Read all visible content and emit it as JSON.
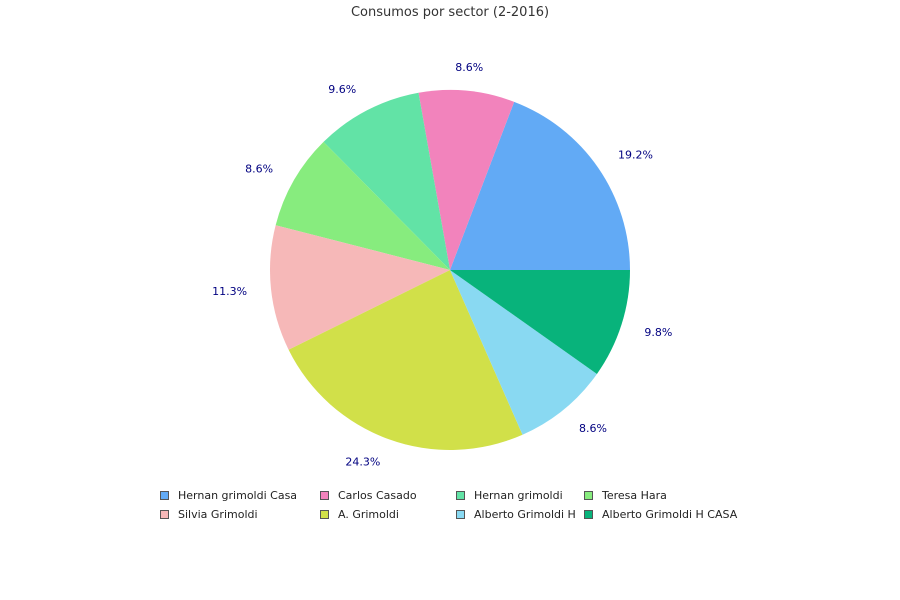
{
  "chart_data": {
    "type": "pie",
    "title": "Consumos por sector (2-2016)",
    "slices": [
      {
        "name": "Hernan grimoldi Casa",
        "value": 19.2,
        "label": "19.2%",
        "color": "#62AAF5"
      },
      {
        "name": "Carlos Casado",
        "value": 8.6,
        "label": "8.6%",
        "color": "#F283BC"
      },
      {
        "name": "Hernan grimoldi",
        "value": 9.6,
        "label": "9.6%",
        "color": "#62E3A6"
      },
      {
        "name": "Teresa Hara",
        "value": 8.6,
        "label": "8.6%",
        "color": "#87EC7E"
      },
      {
        "name": "Silvia Grimoldi",
        "value": 11.3,
        "label": "11.3%",
        "color": "#F6B8B8"
      },
      {
        "name": "A. Grimoldi",
        "value": 24.3,
        "label": "24.3%",
        "color": "#D1E049"
      },
      {
        "name": "Alberto Grimoldi H",
        "value": 8.6,
        "label": "8.6%",
        "color": "#89D9F2"
      },
      {
        "name": "Alberto Grimoldi H CASA",
        "value": 9.8,
        "label": "9.8%",
        "color": "#08B37B"
      }
    ],
    "start": "3 o'clock",
    "direction": "counterclockwise",
    "legend_position": "bottom"
  }
}
